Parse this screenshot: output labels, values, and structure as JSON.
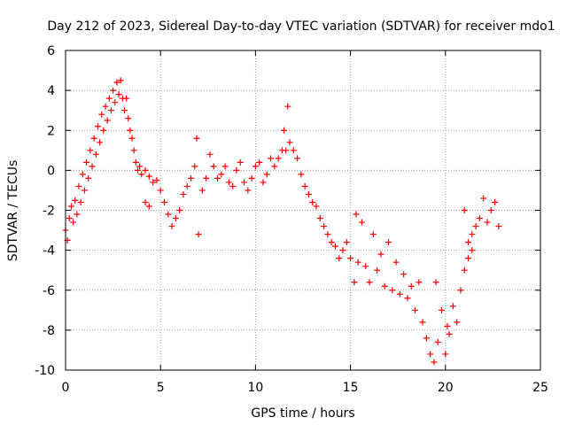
{
  "chart_data": {
    "type": "scatter",
    "title": "Day 212 of 2023, Sidereal Day-to-day VTEC variation (SDTVAR) for receiver mdo1",
    "xlabel": "GPS time / hours",
    "ylabel": "SDTVAR / TECUs",
    "xlim": [
      0,
      25
    ],
    "ylim": [
      -10,
      6
    ],
    "xticks": [
      "0",
      "5",
      "10",
      "15",
      "20",
      "25"
    ],
    "yticks": [
      "-10",
      "-8",
      "-6",
      "-4",
      "-2",
      "0",
      "2",
      "4",
      "6"
    ],
    "grid": true,
    "marker": "+",
    "color": "#ff0000",
    "series": [
      {
        "name": "SDTVAR",
        "points": [
          [
            0.0,
            -3.0
          ],
          [
            0.1,
            -3.5
          ],
          [
            0.2,
            -2.4
          ],
          [
            0.3,
            -1.8
          ],
          [
            0.4,
            -2.6
          ],
          [
            0.5,
            -1.5
          ],
          [
            0.6,
            -2.2
          ],
          [
            0.7,
            -0.8
          ],
          [
            0.8,
            -1.6
          ],
          [
            0.9,
            -0.2
          ],
          [
            1.0,
            -1.0
          ],
          [
            1.1,
            0.4
          ],
          [
            1.2,
            -0.4
          ],
          [
            1.3,
            1.0
          ],
          [
            1.4,
            0.2
          ],
          [
            1.5,
            1.6
          ],
          [
            1.6,
            0.8
          ],
          [
            1.7,
            2.2
          ],
          [
            1.8,
            1.4
          ],
          [
            1.9,
            2.8
          ],
          [
            2.0,
            2.0
          ],
          [
            2.1,
            3.2
          ],
          [
            2.2,
            2.5
          ],
          [
            2.3,
            3.6
          ],
          [
            2.4,
            3.0
          ],
          [
            2.5,
            4.0
          ],
          [
            2.6,
            3.4
          ],
          [
            2.7,
            4.4
          ],
          [
            2.8,
            3.8
          ],
          [
            2.9,
            4.5
          ],
          [
            3.0,
            3.6
          ],
          [
            3.1,
            3.0
          ],
          [
            3.2,
            3.6
          ],
          [
            3.3,
            2.6
          ],
          [
            3.4,
            2.0
          ],
          [
            3.5,
            1.6
          ],
          [
            3.6,
            1.0
          ],
          [
            3.7,
            0.4
          ],
          [
            3.8,
            0.0
          ],
          [
            3.9,
            0.2
          ],
          [
            4.0,
            -0.2
          ],
          [
            4.2,
            0.0
          ],
          [
            4.4,
            -0.3
          ],
          [
            4.6,
            -0.6
          ],
          [
            4.8,
            -0.5
          ],
          [
            4.2,
            -1.6
          ],
          [
            4.4,
            -1.8
          ],
          [
            5.0,
            -1.0
          ],
          [
            5.2,
            -1.6
          ],
          [
            5.4,
            -2.2
          ],
          [
            5.6,
            -2.8
          ],
          [
            5.8,
            -2.4
          ],
          [
            6.0,
            -2.0
          ],
          [
            6.2,
            -1.2
          ],
          [
            6.4,
            -0.8
          ],
          [
            6.6,
            -0.4
          ],
          [
            6.8,
            0.2
          ],
          [
            6.9,
            1.6
          ],
          [
            7.0,
            -3.2
          ],
          [
            7.2,
            -1.0
          ],
          [
            7.4,
            -0.4
          ],
          [
            7.6,
            0.8
          ],
          [
            7.8,
            0.2
          ],
          [
            8.0,
            -0.4
          ],
          [
            8.2,
            -0.2
          ],
          [
            8.4,
            0.2
          ],
          [
            8.6,
            -0.6
          ],
          [
            8.8,
            -0.8
          ],
          [
            9.0,
            0.0
          ],
          [
            9.2,
            0.4
          ],
          [
            9.4,
            -0.6
          ],
          [
            9.6,
            -1.0
          ],
          [
            9.8,
            -0.4
          ],
          [
            10.0,
            0.2
          ],
          [
            10.2,
            0.4
          ],
          [
            10.4,
            -0.6
          ],
          [
            10.6,
            -0.2
          ],
          [
            10.8,
            0.6
          ],
          [
            11.0,
            0.2
          ],
          [
            11.2,
            0.6
          ],
          [
            11.4,
            1.0
          ],
          [
            11.5,
            2.0
          ],
          [
            11.6,
            1.0
          ],
          [
            11.7,
            3.2
          ],
          [
            11.8,
            1.4
          ],
          [
            12.0,
            1.0
          ],
          [
            12.2,
            0.6
          ],
          [
            12.4,
            -0.2
          ],
          [
            12.6,
            -0.8
          ],
          [
            12.8,
            -1.2
          ],
          [
            13.0,
            -1.6
          ],
          [
            13.2,
            -1.8
          ],
          [
            13.4,
            -2.4
          ],
          [
            13.6,
            -2.8
          ],
          [
            13.8,
            -3.2
          ],
          [
            14.0,
            -3.6
          ],
          [
            14.2,
            -3.8
          ],
          [
            14.4,
            -4.4
          ],
          [
            14.6,
            -4.0
          ],
          [
            14.8,
            -3.6
          ],
          [
            15.0,
            -4.4
          ],
          [
            15.2,
            -5.6
          ],
          [
            15.3,
            -2.2
          ],
          [
            15.4,
            -4.6
          ],
          [
            15.6,
            -2.6
          ],
          [
            15.8,
            -4.8
          ],
          [
            16.0,
            -5.6
          ],
          [
            16.2,
            -3.2
          ],
          [
            16.4,
            -5.0
          ],
          [
            16.6,
            -4.2
          ],
          [
            16.8,
            -5.8
          ],
          [
            17.0,
            -3.6
          ],
          [
            17.2,
            -6.0
          ],
          [
            17.4,
            -4.6
          ],
          [
            17.6,
            -6.2
          ],
          [
            17.8,
            -5.2
          ],
          [
            18.0,
            -6.4
          ],
          [
            18.2,
            -5.8
          ],
          [
            18.4,
            -7.0
          ],
          [
            18.6,
            -5.6
          ],
          [
            18.8,
            -7.6
          ],
          [
            19.0,
            -8.4
          ],
          [
            19.2,
            -9.2
          ],
          [
            19.4,
            -9.6
          ],
          [
            19.5,
            -5.6
          ],
          [
            19.6,
            -8.6
          ],
          [
            19.8,
            -7.0
          ],
          [
            20.0,
            -9.2
          ],
          [
            20.1,
            -7.8
          ],
          [
            20.2,
            -8.2
          ],
          [
            20.4,
            -6.8
          ],
          [
            20.6,
            -7.6
          ],
          [
            20.8,
            -6.0
          ],
          [
            21.0,
            -5.0
          ],
          [
            21.2,
            -4.4
          ],
          [
            21.4,
            -3.2
          ],
          [
            21.6,
            -2.8
          ],
          [
            21.8,
            -2.4
          ],
          [
            22.0,
            -1.4
          ],
          [
            22.2,
            -2.6
          ],
          [
            22.4,
            -2.0
          ],
          [
            22.6,
            -1.6
          ],
          [
            22.8,
            -2.8
          ],
          [
            21.0,
            -2.0
          ],
          [
            21.2,
            -3.6
          ],
          [
            21.4,
            -4.0
          ]
        ]
      }
    ]
  }
}
